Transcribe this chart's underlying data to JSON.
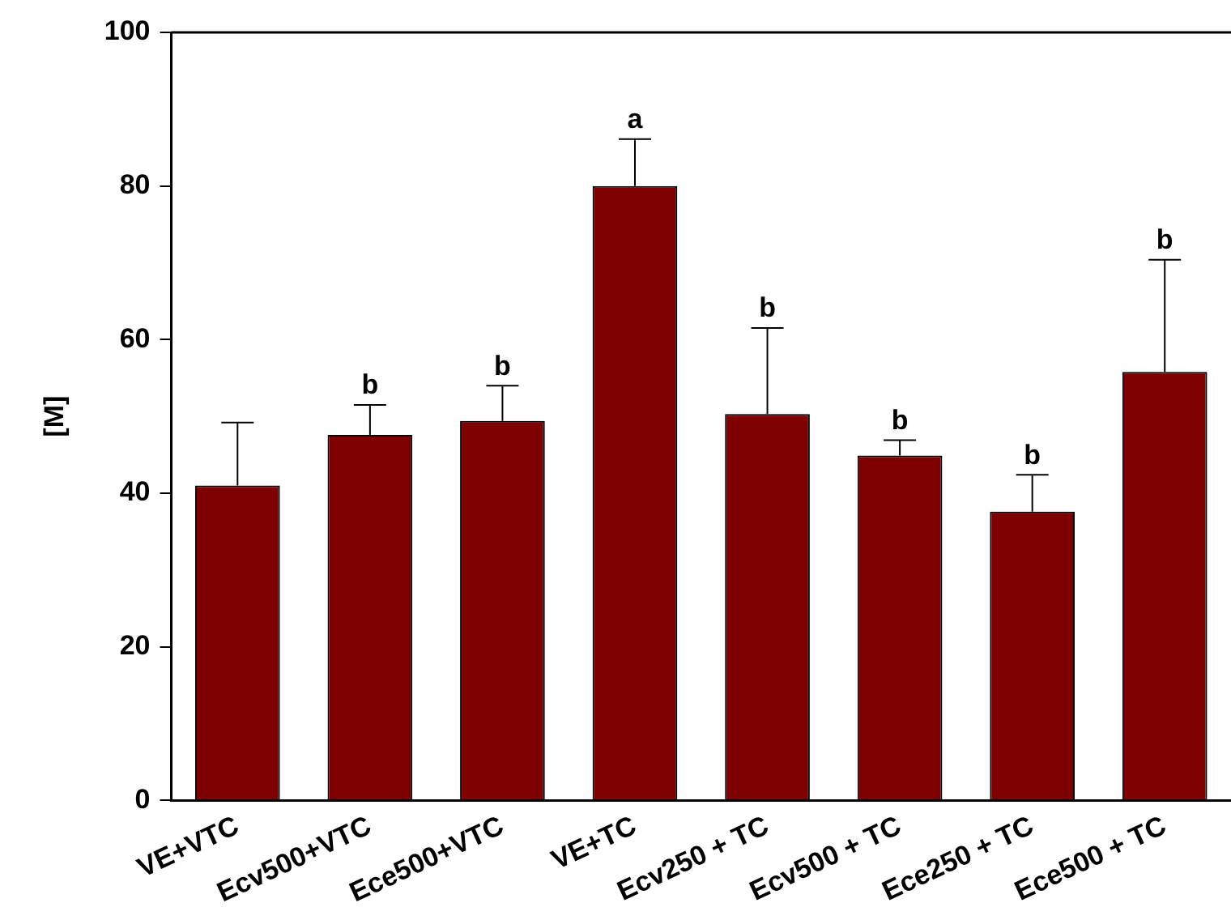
{
  "chart_data": {
    "type": "bar",
    "ylabel": "[M]",
    "categories": [
      "VE+VTC",
      "Ecv500+VTC",
      "Ece500+VTC",
      "VE+TC",
      "Ecv250 + TC",
      "Ecv500 + TC",
      "Ece250 + TC",
      "Ece500 + TC"
    ],
    "values": [
      41,
      47.6,
      49.4,
      80,
      50.3,
      44.9,
      37.6,
      55.8
    ],
    "errors": [
      [
        41,
        49.2
      ],
      [
        47.6,
        51.5
      ],
      [
        49.4,
        54
      ],
      [
        80,
        86.1
      ],
      [
        50.3,
        61.5
      ],
      [
        44.9,
        46.9
      ],
      [
        37.6,
        42.4
      ],
      [
        55.8,
        70.4
      ]
    ],
    "color": "#7f0000",
    "ylim": [
      0,
      100
    ],
    "yticks": [
      0,
      20,
      40,
      60,
      80,
      100
    ],
    "grid": false,
    "legend": false,
    "annotations": [
      {
        "text": "b",
        "x": "Ecv500+VTC",
        "y": 51.5
      },
      {
        "text": "b",
        "x": "Ece500+VTC",
        "y": 54
      },
      {
        "text": "a",
        "x": "VE+TC",
        "y": 86.1
      },
      {
        "text": "b",
        "x": "Ecv250 + TC",
        "y": 61.5
      },
      {
        "text": "b",
        "x": "Ecv500 + TC",
        "y": 46.9
      },
      {
        "text": "b",
        "x": "Ece250 + TC",
        "y": 42.4
      },
      {
        "text": "b",
        "x": "Ece500 + TC",
        "y": 70.4
      }
    ]
  }
}
